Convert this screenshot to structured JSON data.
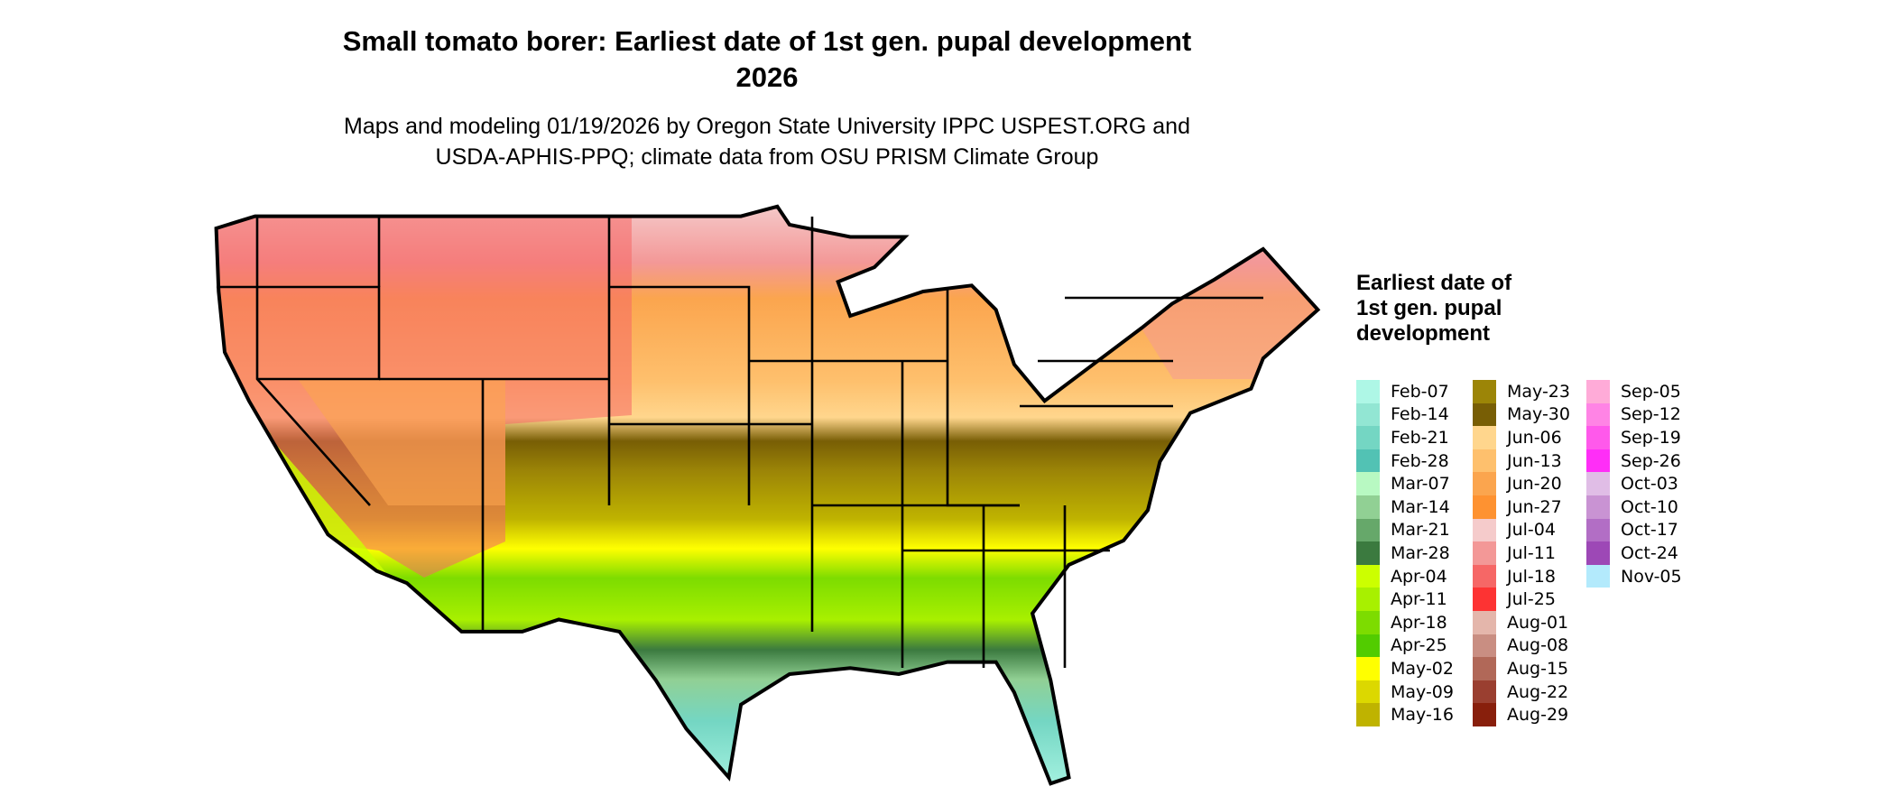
{
  "title": "Small tomato borer: Earliest date of 1st gen. pupal development",
  "year": "2026",
  "subtitle_line1": "Maps and modeling 01/19/2026 by Oregon State University IPPC USPEST.ORG and",
  "subtitle_line2": "USDA-APHIS-PPQ; climate data from OSU PRISM Climate Group",
  "legend": {
    "title": "Earliest date of 1st gen. pupal development",
    "placement": "right",
    "entries": [
      {
        "label": "Feb-07",
        "color": "#aef7e6"
      },
      {
        "label": "Feb-14",
        "color": "#92e6d3"
      },
      {
        "label": "Feb-21",
        "color": "#74d6c3"
      },
      {
        "label": "Feb-28",
        "color": "#52c2b4"
      },
      {
        "label": "Mar-07",
        "color": "#b8f9c2"
      },
      {
        "label": "Mar-14",
        "color": "#91d094"
      },
      {
        "label": "Mar-21",
        "color": "#66a86a"
      },
      {
        "label": "Mar-28",
        "color": "#3b7a3f"
      },
      {
        "label": "Apr-04",
        "color": "#ccff00"
      },
      {
        "label": "Apr-11",
        "color": "#a8f000"
      },
      {
        "label": "Apr-18",
        "color": "#7ddc00"
      },
      {
        "label": "Apr-25",
        "color": "#52cc00"
      },
      {
        "label": "May-02",
        "color": "#ffff00"
      },
      {
        "label": "May-09",
        "color": "#dcd800"
      },
      {
        "label": "May-16",
        "color": "#bfb300"
      },
      {
        "label": "May-23",
        "color": "#9c8507"
      },
      {
        "label": "May-30",
        "color": "#785e05"
      },
      {
        "label": "Jun-06",
        "color": "#ffd68d"
      },
      {
        "label": "Jun-13",
        "color": "#fec06d"
      },
      {
        "label": "Jun-20",
        "color": "#fba54e"
      },
      {
        "label": "Jun-27",
        "color": "#fe9231"
      },
      {
        "label": "Jul-04",
        "color": "#f5cbcb"
      },
      {
        "label": "Jul-11",
        "color": "#f39897"
      },
      {
        "label": "Jul-18",
        "color": "#f66766"
      },
      {
        "label": "Jul-25",
        "color": "#fd3333"
      },
      {
        "label": "Aug-01",
        "color": "#e4b6ab"
      },
      {
        "label": "Aug-08",
        "color": "#c98e82"
      },
      {
        "label": "Aug-15",
        "color": "#b16858"
      },
      {
        "label": "Aug-22",
        "color": "#9a3f30"
      },
      {
        "label": "Aug-29",
        "color": "#881f0c"
      },
      {
        "label": "Sep-05",
        "color": "#ffabd8"
      },
      {
        "label": "Sep-12",
        "color": "#ff84e5"
      },
      {
        "label": "Sep-19",
        "color": "#ff59eb"
      },
      {
        "label": "Sep-26",
        "color": "#ff2ef7"
      },
      {
        "label": "Oct-03",
        "color": "#e0bde6"
      },
      {
        "label": "Oct-10",
        "color": "#c993d3"
      },
      {
        "label": "Oct-17",
        "color": "#b26ec5"
      },
      {
        "label": "Oct-24",
        "color": "#9d48b6"
      },
      {
        "label": "Nov-05",
        "color": "#b3eafc"
      }
    ]
  }
}
